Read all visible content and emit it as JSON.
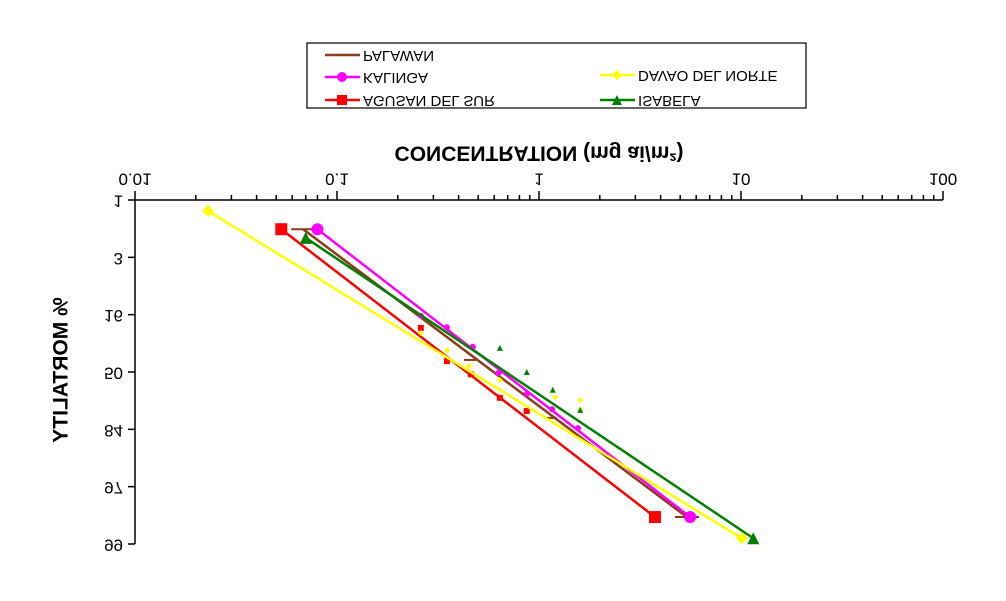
{
  "chart_data": {
    "type": "line",
    "xlabel": "CONCENTRATION (mg ai/m²)",
    "ylabel": "% MORTALITY",
    "xscale": "log",
    "xlim": [
      0.01,
      100
    ],
    "xticks": [
      0.01,
      0.1,
      1,
      10,
      100
    ],
    "ylim": [
      1,
      7
    ],
    "yticks": [
      1,
      {
        "value": 2,
        "label": "3"
      },
      {
        "value": 3,
        "label": "16"
      },
      {
        "value": 4,
        "label": "50"
      },
      {
        "value": 5,
        "label": "84"
      },
      {
        "value": 6,
        "label": "97"
      },
      {
        "value": 7,
        "label": "99"
      }
    ],
    "series": [
      {
        "name": "PALAWAN",
        "color": "#8b3a1a",
        "marker": "dash",
        "x": [
          0.068,
          0.455,
          1.14,
          5.4
        ],
        "values": [
          1.51,
          3.79,
          4.8,
          6.53
        ],
        "fit": {
          "x": [
            0.068,
            5.4
          ],
          "values": [
            1.51,
            6.53
          ]
        }
      },
      {
        "name": "KALINGA",
        "color": "#ff00ff",
        "marker": "circle",
        "x": [
          0.08,
          0.26,
          0.35,
          0.47,
          0.63,
          0.87,
          1.16,
          1.56,
          5.6
        ],
        "values": [
          1.51,
          3.02,
          3.22,
          3.56,
          4.02,
          4.38,
          4.65,
          4.98,
          6.53
        ],
        "fit": {
          "x": [
            0.08,
            5.6
          ],
          "values": [
            1.51,
            6.53
          ]
        }
      },
      {
        "name": "AGUSAN DEL SUR",
        "color": "#ff0000",
        "marker": "square",
        "x": [
          0.053,
          0.26,
          0.35,
          0.46,
          0.64,
          0.87,
          3.75
        ],
        "values": [
          1.51,
          3.23,
          3.81,
          4.04,
          4.45,
          4.68,
          6.53
        ],
        "fit": {
          "x": [
            0.053,
            3.75
          ],
          "values": [
            1.51,
            6.53
          ]
        }
      },
      {
        "name": "DAVAO DEL NORTE",
        "color": "#ffff00",
        "marker": "diamond",
        "x": [
          0.023,
          0.26,
          0.35,
          0.45,
          0.64,
          1.2,
          1.6,
          1.6,
          10.1
        ],
        "values": [
          1.19,
          3.32,
          3.62,
          3.9,
          4.14,
          4.44,
          4.49,
          4.66,
          6.9
        ],
        "fit": {
          "x": [
            0.023,
            10.1
          ],
          "values": [
            1.19,
            6.9
          ]
        }
      },
      {
        "name": "ISABELA",
        "color": "#008000",
        "marker": "triangle",
        "x": [
          0.07,
          0.64,
          0.87,
          1.17,
          1.6,
          11.5
        ],
        "values": [
          1.66,
          3.58,
          4.0,
          4.31,
          4.66,
          6.9
        ],
        "fit": {
          "x": [
            0.07,
            11.5
          ],
          "values": [
            1.66,
            6.9
          ]
        }
      }
    ]
  }
}
